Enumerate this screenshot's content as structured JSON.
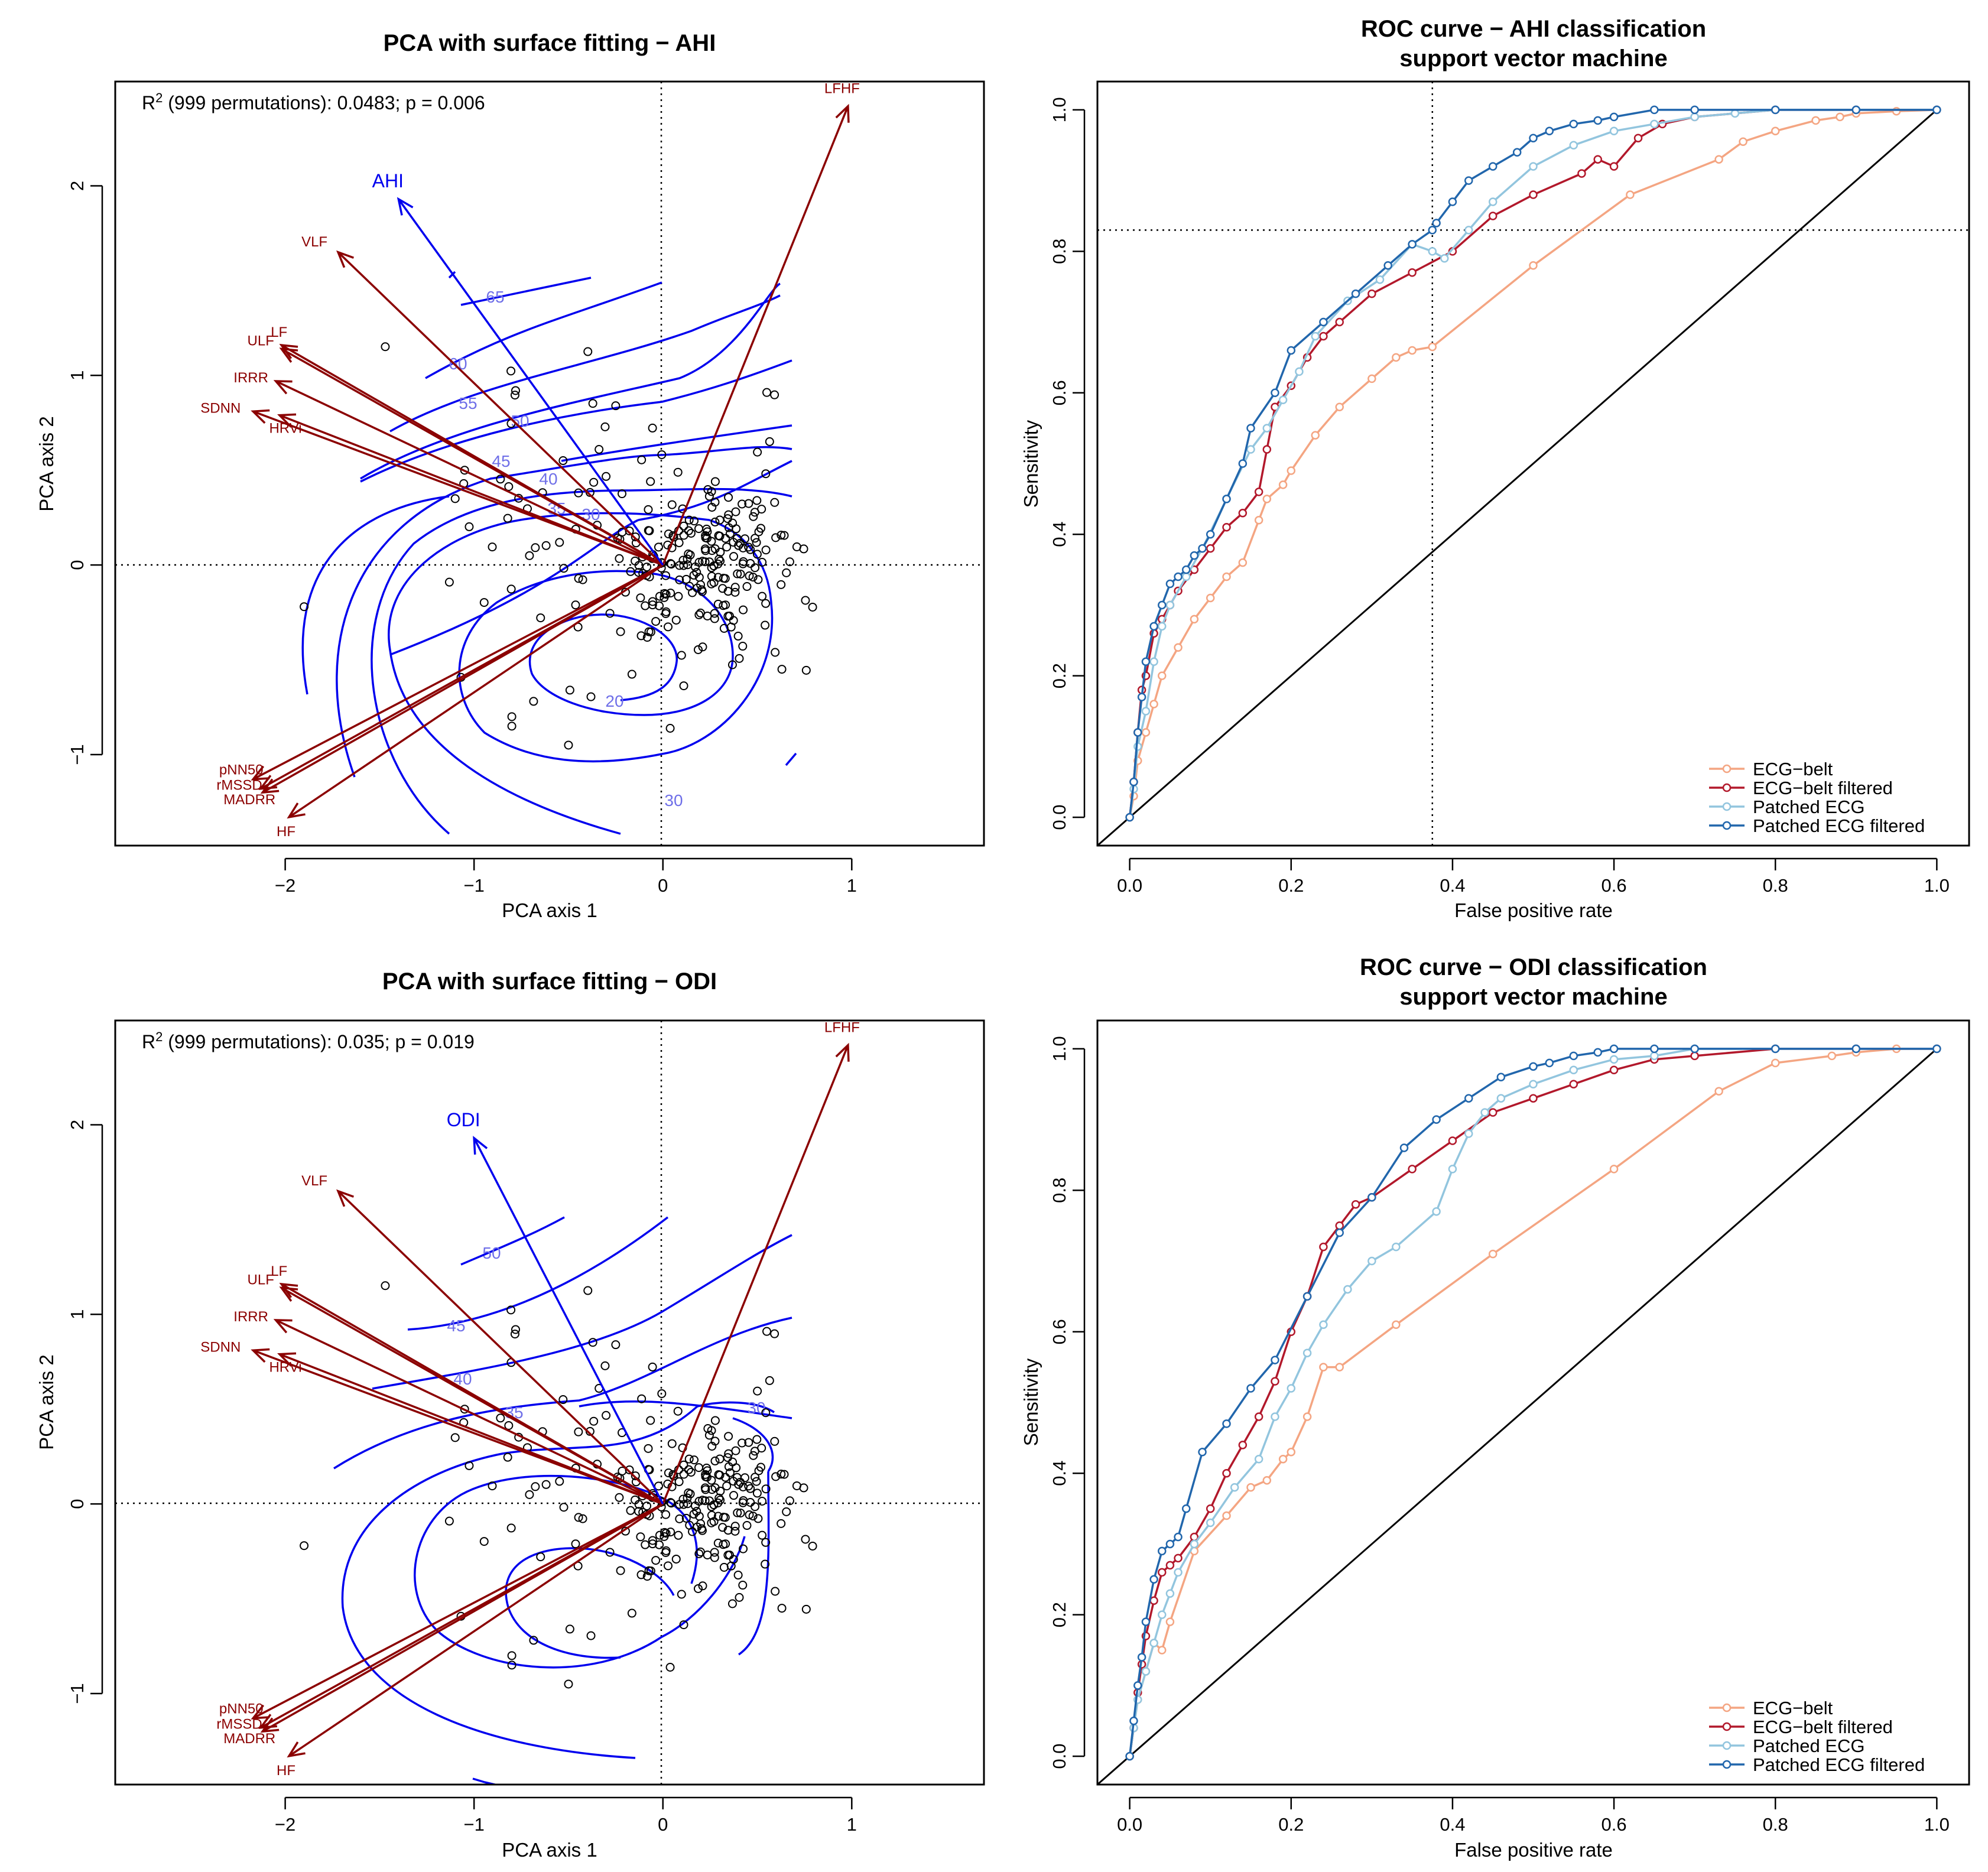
{
  "chart_data": [
    {
      "type": "scatter",
      "title": "PCA with surface fitting − AHI",
      "xlabel": "PCA axis 1",
      "ylabel": "PCA axis 2",
      "xlim": [
        -2.9,
        1.7
      ],
      "ylim": [
        -1.48,
        2.55
      ],
      "xticks": [
        -2,
        -1,
        0,
        1
      ],
      "yticks": [
        -1,
        0,
        1,
        2
      ],
      "xtick_labels": [
        "−2",
        "−1",
        "0",
        "1"
      ],
      "ytick_labels": [
        "−1",
        "0",
        "1",
        "2"
      ],
      "annotation_prefix": "R",
      "annotation_sup": "2",
      "annotation_text": " (999 permutations): 0.0483; p = 0.006",
      "envfit": {
        "label": "AHI",
        "x": -1.4,
        "y": 1.93
      },
      "loadings": [
        {
          "name": "LFHF",
          "x": 0.98,
          "y": 2.42
        },
        {
          "name": "VLF",
          "x": -1.72,
          "y": 1.65
        },
        {
          "name": "LF",
          "x": -2.02,
          "y": 1.16
        },
        {
          "name": "ULF",
          "x": -2.02,
          "y": 1.14
        },
        {
          "name": "IRRR",
          "x": -2.05,
          "y": 0.97
        },
        {
          "name": "SDNN",
          "x": -2.17,
          "y": 0.81
        },
        {
          "name": "HRVi",
          "x": -2.03,
          "y": 0.79
        },
        {
          "name": "pNN50",
          "x": -2.17,
          "y": -1.13
        },
        {
          "name": "rMSSD",
          "x": -2.13,
          "y": -1.18
        },
        {
          "name": "MADRR",
          "x": -2.12,
          "y": -1.2
        },
        {
          "name": "HF",
          "x": -1.98,
          "y": -1.33
        }
      ],
      "contour_levels": [
        "65",
        "60",
        "55",
        "50",
        "45",
        "40",
        "35",
        "30",
        "20",
        "30"
      ]
    },
    {
      "type": "line",
      "title": "ROC curve − AHI classification",
      "subtitle": "support vector machine",
      "xlabel": "False positive rate",
      "ylabel": "Sensitivity",
      "xlim": [
        -0.04,
        1.04
      ],
      "ylim": [
        -0.04,
        1.04
      ],
      "xticks": [
        0.0,
        0.2,
        0.4,
        0.6,
        0.8,
        1.0
      ],
      "yticks": [
        0.0,
        0.2,
        0.4,
        0.6,
        0.8,
        1.0
      ],
      "tick_labels": [
        "0.0",
        "0.2",
        "0.4",
        "0.6",
        "0.8",
        "1.0"
      ],
      "cutoff": {
        "x": 0.375,
        "y": 0.83
      },
      "legend_position": "bottom-right",
      "series": [
        {
          "name": "ECG−belt",
          "color": "#f4a582",
          "x": [
            0,
            0.005,
            0.01,
            0.02,
            0.03,
            0.04,
            0.06,
            0.08,
            0.1,
            0.12,
            0.14,
            0.16,
            0.17,
            0.19,
            0.2,
            0.23,
            0.26,
            0.3,
            0.33,
            0.35,
            0.375,
            0.5,
            0.62,
            0.73,
            0.76,
            0.8,
            0.85,
            0.88,
            0.9,
            0.95,
            1.0
          ],
          "values": [
            0,
            0.03,
            0.08,
            0.12,
            0.16,
            0.2,
            0.24,
            0.28,
            0.31,
            0.34,
            0.36,
            0.42,
            0.45,
            0.47,
            0.49,
            0.54,
            0.58,
            0.62,
            0.65,
            0.66,
            0.665,
            0.78,
            0.88,
            0.93,
            0.955,
            0.97,
            0.985,
            0.99,
            0.995,
            0.998,
            1.0
          ]
        },
        {
          "name": "ECG−belt filtered",
          "color": "#b2182b",
          "x": [
            0,
            0.005,
            0.01,
            0.015,
            0.02,
            0.03,
            0.04,
            0.05,
            0.06,
            0.08,
            0.1,
            0.12,
            0.14,
            0.16,
            0.17,
            0.18,
            0.2,
            0.22,
            0.24,
            0.26,
            0.3,
            0.35,
            0.4,
            0.45,
            0.5,
            0.56,
            0.58,
            0.6,
            0.63,
            0.66,
            0.7,
            0.8,
            0.9,
            1.0
          ],
          "values": [
            0,
            0.05,
            0.12,
            0.18,
            0.2,
            0.26,
            0.28,
            0.3,
            0.32,
            0.35,
            0.38,
            0.41,
            0.43,
            0.46,
            0.52,
            0.58,
            0.61,
            0.65,
            0.68,
            0.7,
            0.74,
            0.77,
            0.8,
            0.85,
            0.88,
            0.91,
            0.93,
            0.92,
            0.96,
            0.98,
            0.99,
            1.0,
            1.0,
            1.0
          ]
        },
        {
          "name": "Patched ECG",
          "color": "#92c5de",
          "x": [
            0,
            0.005,
            0.01,
            0.02,
            0.03,
            0.04,
            0.05,
            0.07,
            0.09,
            0.12,
            0.15,
            0.17,
            0.19,
            0.21,
            0.23,
            0.27,
            0.31,
            0.35,
            0.375,
            0.39,
            0.42,
            0.45,
            0.5,
            0.55,
            0.6,
            0.65,
            0.7,
            0.75,
            0.8,
            0.9,
            1.0
          ],
          "values": [
            0,
            0.04,
            0.1,
            0.15,
            0.22,
            0.27,
            0.3,
            0.34,
            0.38,
            0.45,
            0.52,
            0.55,
            0.59,
            0.63,
            0.68,
            0.73,
            0.76,
            0.81,
            0.8,
            0.79,
            0.83,
            0.87,
            0.92,
            0.95,
            0.97,
            0.98,
            0.99,
            0.995,
            1.0,
            1.0,
            1.0
          ]
        },
        {
          "name": "Patched ECG filtered",
          "color": "#2166ac",
          "x": [
            0,
            0.005,
            0.01,
            0.015,
            0.02,
            0.03,
            0.04,
            0.05,
            0.06,
            0.07,
            0.08,
            0.09,
            0.1,
            0.12,
            0.14,
            0.15,
            0.18,
            0.2,
            0.24,
            0.28,
            0.32,
            0.35,
            0.375,
            0.38,
            0.4,
            0.42,
            0.45,
            0.48,
            0.5,
            0.52,
            0.55,
            0.58,
            0.6,
            0.65,
            0.7,
            0.8,
            0.9,
            1.0
          ],
          "values": [
            0,
            0.05,
            0.12,
            0.17,
            0.22,
            0.27,
            0.3,
            0.33,
            0.34,
            0.35,
            0.37,
            0.38,
            0.4,
            0.45,
            0.5,
            0.55,
            0.6,
            0.66,
            0.7,
            0.74,
            0.78,
            0.81,
            0.83,
            0.84,
            0.87,
            0.9,
            0.92,
            0.94,
            0.96,
            0.97,
            0.98,
            0.985,
            0.99,
            1.0,
            1.0,
            1.0,
            1.0,
            1.0
          ]
        }
      ]
    },
    {
      "type": "scatter",
      "title": "PCA with surface fitting − ODI",
      "xlabel": "PCA axis 1",
      "ylabel": "PCA axis 2",
      "xlim": [
        -2.9,
        1.7
      ],
      "ylim": [
        -1.48,
        2.55
      ],
      "xticks": [
        -2,
        -1,
        0,
        1
      ],
      "yticks": [
        -1,
        0,
        1,
        2
      ],
      "xtick_labels": [
        "−2",
        "−1",
        "0",
        "1"
      ],
      "ytick_labels": [
        "−1",
        "0",
        "1",
        "2"
      ],
      "annotation_prefix": "R",
      "annotation_sup": "2",
      "annotation_text": " (999 permutations): 0.035; p = 0.019",
      "envfit": {
        "label": "ODI",
        "x": -1.0,
        "y": 1.93
      },
      "loadings": [
        {
          "name": "LFHF",
          "x": 0.98,
          "y": 2.42
        },
        {
          "name": "VLF",
          "x": -1.72,
          "y": 1.65
        },
        {
          "name": "LF",
          "x": -2.02,
          "y": 1.16
        },
        {
          "name": "ULF",
          "x": -2.02,
          "y": 1.14
        },
        {
          "name": "IRRR",
          "x": -2.05,
          "y": 0.97
        },
        {
          "name": "SDNN",
          "x": -2.17,
          "y": 0.81
        },
        {
          "name": "HRVi",
          "x": -2.03,
          "y": 0.79
        },
        {
          "name": "pNN50",
          "x": -2.17,
          "y": -1.13
        },
        {
          "name": "rMSSD",
          "x": -2.13,
          "y": -1.18
        },
        {
          "name": "MADRR",
          "x": -2.12,
          "y": -1.2
        },
        {
          "name": "HF",
          "x": -1.98,
          "y": -1.33
        }
      ],
      "contour_levels": [
        "50",
        "45",
        "40",
        "35",
        "30"
      ]
    },
    {
      "type": "line",
      "title": "ROC curve − ODI classification",
      "subtitle": "support vector machine",
      "xlabel": "False positive rate",
      "ylabel": "Sensitivity",
      "xlim": [
        -0.04,
        1.04
      ],
      "ylim": [
        -0.04,
        1.04
      ],
      "xticks": [
        0.0,
        0.2,
        0.4,
        0.6,
        0.8,
        1.0
      ],
      "yticks": [
        0.0,
        0.2,
        0.4,
        0.6,
        0.8,
        1.0
      ],
      "tick_labels": [
        "0.0",
        "0.2",
        "0.4",
        "0.6",
        "0.8",
        "1.0"
      ],
      "legend_position": "bottom-right",
      "series": [
        {
          "name": "ECG−belt",
          "color": "#f4a582",
          "x": [
            0,
            0.005,
            0.01,
            0.02,
            0.03,
            0.04,
            0.05,
            0.08,
            0.12,
            0.15,
            0.17,
            0.19,
            0.2,
            0.22,
            0.24,
            0.26,
            0.33,
            0.45,
            0.6,
            0.73,
            0.8,
            0.87,
            0.9,
            0.95,
            1.0
          ],
          "values": [
            0,
            0.04,
            0.08,
            0.12,
            0.16,
            0.15,
            0.19,
            0.29,
            0.34,
            0.38,
            0.39,
            0.42,
            0.43,
            0.48,
            0.55,
            0.55,
            0.61,
            0.71,
            0.83,
            0.94,
            0.98,
            0.99,
            0.995,
            1.0,
            1.0
          ]
        },
        {
          "name": "ECG−belt filtered",
          "color": "#b2182b",
          "x": [
            0,
            0.005,
            0.01,
            0.015,
            0.02,
            0.03,
            0.04,
            0.05,
            0.06,
            0.08,
            0.1,
            0.12,
            0.14,
            0.16,
            0.18,
            0.2,
            0.22,
            0.24,
            0.26,
            0.28,
            0.3,
            0.35,
            0.4,
            0.45,
            0.5,
            0.55,
            0.6,
            0.65,
            0.7,
            0.8,
            0.9,
            1.0
          ],
          "values": [
            0,
            0.04,
            0.09,
            0.13,
            0.17,
            0.22,
            0.26,
            0.27,
            0.28,
            0.31,
            0.35,
            0.4,
            0.44,
            0.48,
            0.53,
            0.6,
            0.65,
            0.72,
            0.75,
            0.78,
            0.79,
            0.83,
            0.87,
            0.91,
            0.93,
            0.95,
            0.97,
            0.985,
            0.99,
            1.0,
            1.0,
            1.0
          ]
        },
        {
          "name": "Patched ECG",
          "color": "#92c5de",
          "x": [
            0,
            0.005,
            0.01,
            0.02,
            0.03,
            0.04,
            0.05,
            0.06,
            0.08,
            0.1,
            0.13,
            0.16,
            0.18,
            0.2,
            0.22,
            0.24,
            0.27,
            0.3,
            0.33,
            0.38,
            0.4,
            0.42,
            0.44,
            0.46,
            0.5,
            0.55,
            0.6,
            0.65,
            0.7,
            0.8,
            0.9,
            1.0
          ],
          "values": [
            0,
            0.04,
            0.08,
            0.12,
            0.16,
            0.2,
            0.23,
            0.26,
            0.3,
            0.33,
            0.38,
            0.42,
            0.48,
            0.52,
            0.57,
            0.61,
            0.66,
            0.7,
            0.72,
            0.77,
            0.83,
            0.88,
            0.91,
            0.93,
            0.95,
            0.97,
            0.985,
            0.99,
            1.0,
            1.0,
            1.0,
            1.0
          ]
        },
        {
          "name": "Patched ECG filtered",
          "color": "#2166ac",
          "x": [
            0,
            0.005,
            0.01,
            0.015,
            0.02,
            0.03,
            0.04,
            0.05,
            0.06,
            0.07,
            0.09,
            0.12,
            0.15,
            0.18,
            0.22,
            0.26,
            0.3,
            0.34,
            0.38,
            0.42,
            0.46,
            0.5,
            0.52,
            0.55,
            0.58,
            0.6,
            0.65,
            0.7,
            0.8,
            0.9,
            1.0
          ],
          "values": [
            0,
            0.05,
            0.1,
            0.14,
            0.19,
            0.25,
            0.29,
            0.3,
            0.31,
            0.35,
            0.43,
            0.47,
            0.52,
            0.56,
            0.65,
            0.74,
            0.79,
            0.86,
            0.9,
            0.93,
            0.96,
            0.975,
            0.98,
            0.99,
            0.995,
            1.0,
            1.0,
            1.0,
            1.0,
            1.0,
            1.0
          ]
        }
      ]
    }
  ]
}
